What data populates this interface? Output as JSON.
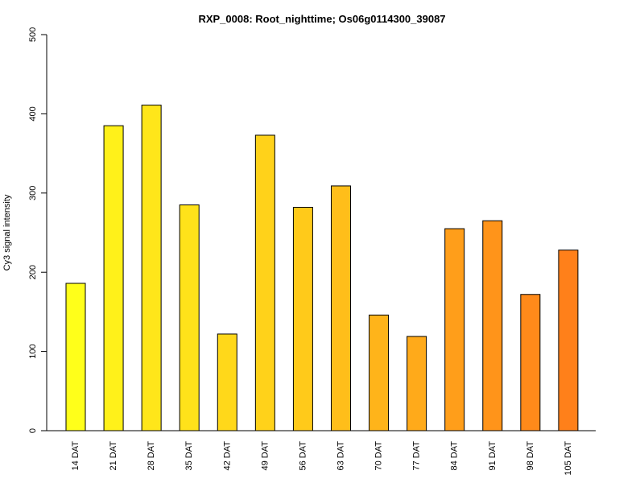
{
  "chart_data": {
    "type": "bar",
    "title": "RXP_0008: Root_nighttime; Os06g0114300_39087",
    "xlabel": "",
    "ylabel": "Cy3 signal intensity",
    "ylim": [
      0,
      500
    ],
    "yticks": [
      0,
      100,
      200,
      300,
      400,
      500
    ],
    "grid": false,
    "legend": "none",
    "categories": [
      "14 DAT",
      "21 DAT",
      "28 DAT",
      "35 DAT",
      "42 DAT",
      "49 DAT",
      "56 DAT",
      "63 DAT",
      "70 DAT",
      "77 DAT",
      "84 DAT",
      "91 DAT",
      "98 DAT",
      "105 DAT"
    ],
    "values": [
      186,
      385,
      411,
      285,
      122,
      373,
      282,
      309,
      146,
      119,
      255,
      265,
      172,
      228
    ],
    "colors": [
      "#FFFF1A",
      "#FFF11A",
      "#FFE61A",
      "#FFE21A",
      "#FFD81A",
      "#FFD21A",
      "#FFCA1A",
      "#FFBE1A",
      "#FFB41A",
      "#FFAA1A",
      "#FF9E1A",
      "#FF941A",
      "#FF8A1A",
      "#FF801A"
    ]
  }
}
